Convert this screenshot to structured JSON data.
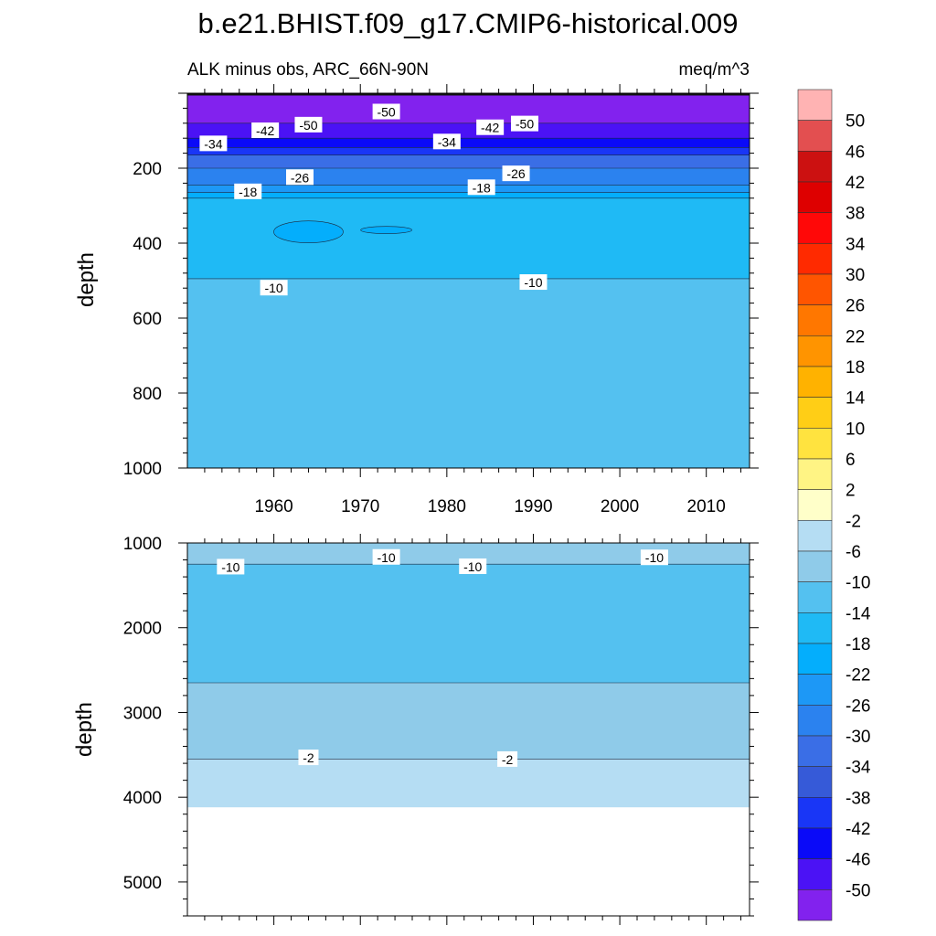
{
  "title": "b.e21.BHIST.f09_g17.CMIP6-historical.009",
  "subtitle_left": "ALK minus obs, ARC_66N-90N",
  "subtitle_right": "meq/m^3",
  "chart_data": [
    {
      "type": "heatmap",
      "panel": "upper",
      "ylabel": "depth",
      "xlabel": "",
      "ylim": [
        0,
        1000
      ],
      "y_reversed": true,
      "xlim": [
        1950,
        2015
      ],
      "x_ticks": [
        "1960",
        "1970",
        "1980",
        "1990",
        "2000",
        "2010"
      ],
      "y_ticks": [
        "200",
        "400",
        "600",
        "800",
        "1000"
      ],
      "bands_depth_ranges": [
        {
          "from": 0,
          "to": 5,
          "value": -46
        },
        {
          "from": 5,
          "to": 80,
          "value": -50
        },
        {
          "from": 80,
          "to": 120,
          "value": -46
        },
        {
          "from": 120,
          "to": 145,
          "value": -42
        },
        {
          "from": 145,
          "to": 165,
          "value": -38
        },
        {
          "from": 165,
          "to": 200,
          "value": -30
        },
        {
          "from": 200,
          "to": 245,
          "value": -26
        },
        {
          "from": 245,
          "to": 265,
          "value": -22
        },
        {
          "from": 265,
          "to": 280,
          "value": -18
        },
        {
          "from": 280,
          "to": 495,
          "value": -14
        },
        {
          "from": 495,
          "to": 1000,
          "value": -10
        }
      ],
      "contour_labels": [
        {
          "text": "-50",
          "x": 1964,
          "y": 85
        },
        {
          "text": "-50",
          "x": 1973,
          "y": 50
        },
        {
          "text": "-50",
          "x": 1989,
          "y": 82
        },
        {
          "text": "-42",
          "x": 1959,
          "y": 100
        },
        {
          "text": "-42",
          "x": 1985,
          "y": 92
        },
        {
          "text": "-34",
          "x": 1953,
          "y": 135
        },
        {
          "text": "-34",
          "x": 1980,
          "y": 130
        },
        {
          "text": "-26",
          "x": 1963,
          "y": 225
        },
        {
          "text": "-26",
          "x": 1988,
          "y": 215
        },
        {
          "text": "-18",
          "x": 1957,
          "y": 263
        },
        {
          "text": "-18",
          "x": 1984,
          "y": 252
        },
        {
          "text": "-10",
          "x": 1960,
          "y": 520
        },
        {
          "text": "-10",
          "x": 1990,
          "y": 505
        }
      ]
    },
    {
      "type": "heatmap",
      "panel": "lower",
      "ylabel": "depth",
      "xlabel": "",
      "ylim": [
        1000,
        5400
      ],
      "y_reversed": true,
      "xlim": [
        1950,
        2015
      ],
      "y_ticks": [
        "1000",
        "2000",
        "3000",
        "4000",
        "5000"
      ],
      "bands_depth_ranges": [
        {
          "from": 1000,
          "to": 1250,
          "value": -6
        },
        {
          "from": 1250,
          "to": 2650,
          "value": -10
        },
        {
          "from": 2650,
          "to": 3550,
          "value": -6
        },
        {
          "from": 3550,
          "to": 4120,
          "value": -2
        },
        {
          "from": 4120,
          "to": 5400,
          "value": "missing"
        }
      ],
      "contour_labels": [
        {
          "text": "-10",
          "x": 1955,
          "y": 1285
        },
        {
          "text": "-10",
          "x": 1973,
          "y": 1170
        },
        {
          "text": "-10",
          "x": 1983,
          "y": 1280
        },
        {
          "text": "-10",
          "x": 2004,
          "y": 1175
        },
        {
          "text": "-2",
          "x": 1964,
          "y": 3535
        },
        {
          "text": "-2",
          "x": 1987,
          "y": 3555
        }
      ]
    }
  ],
  "colorbar": {
    "labels": [
      "50",
      "46",
      "42",
      "38",
      "34",
      "30",
      "26",
      "22",
      "18",
      "14",
      "10",
      "6",
      "2",
      "-2",
      "-6",
      "-10",
      "-14",
      "-18",
      "-22",
      "-26",
      "-30",
      "-34",
      "-38",
      "-42",
      "-46",
      "-50"
    ],
    "colors": [
      "#ffb3b3",
      "#e34f50",
      "#cc1111",
      "#de0000",
      "#ff0808",
      "#ff2a00",
      "#ff5500",
      "#ff7700",
      "#ff9400",
      "#ffb200",
      "#ffce16",
      "#ffe33f",
      "#fff484",
      "#ffffc9",
      "#b5ddf3",
      "#8fcbe9",
      "#54c1f0",
      "#1fbaf5",
      "#04aefc",
      "#1d98f6",
      "#2b82ef",
      "#3a6ee6",
      "#365ad8",
      "#1936f6",
      "#0a0af8",
      "#4b12f5",
      "#8222ee"
    ]
  }
}
